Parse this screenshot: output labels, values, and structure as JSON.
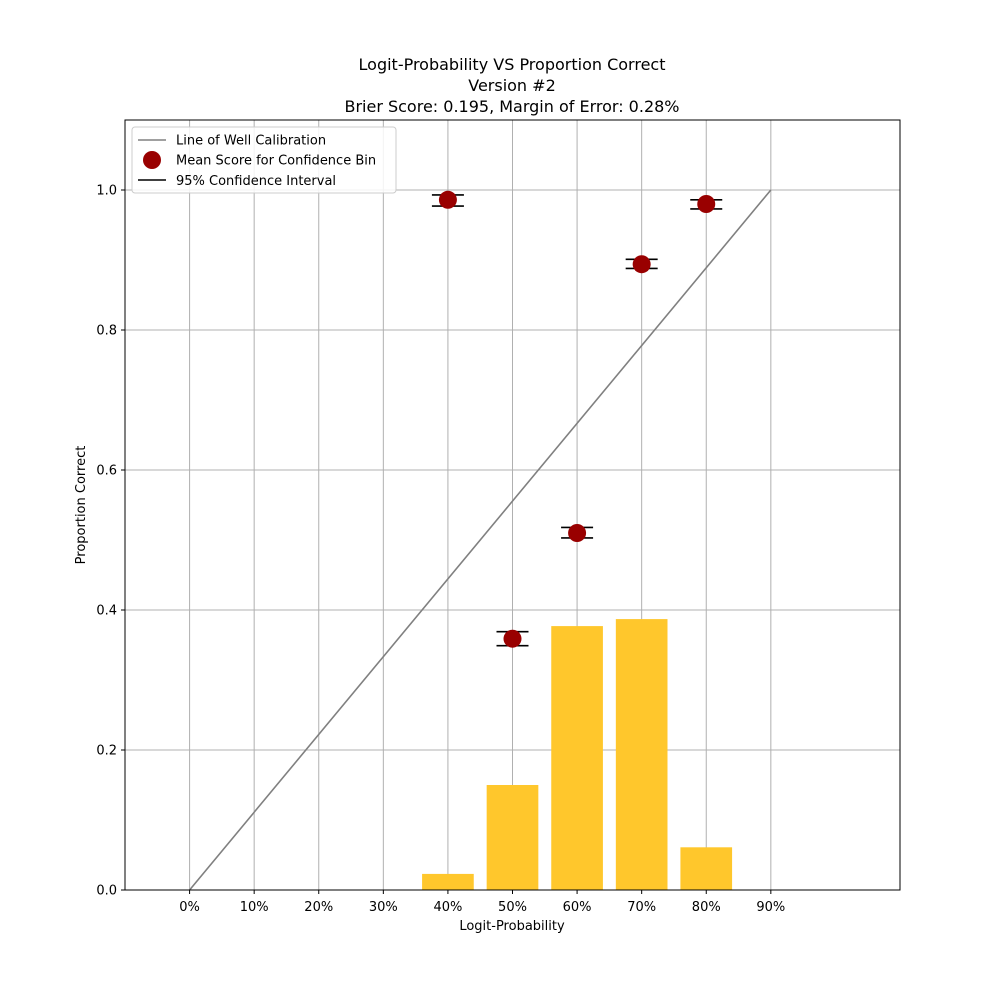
{
  "chart_data": {
    "type": "bar",
    "title_lines": [
      "Logit-Probability VS Proportion Correct",
      "Version #2",
      "Brier Score: 0.195, Margin of Error: 0.28%"
    ],
    "xlabel": "Logit-Probability",
    "ylabel": "Proportion Correct",
    "x_ticks": [
      0,
      10,
      20,
      30,
      40,
      50,
      60,
      70,
      80,
      90
    ],
    "x_tick_labels": [
      "0%",
      "10%",
      "20%",
      "30%",
      "40%",
      "50%",
      "60%",
      "70%",
      "80%",
      "90%"
    ],
    "y_ticks": [
      0.0,
      0.2,
      0.4,
      0.6,
      0.8,
      1.0
    ],
    "y_tick_labels": [
      "0.0",
      "0.2",
      "0.4",
      "0.6",
      "0.8",
      "1.0"
    ],
    "xlim": [
      -10,
      110
    ],
    "ylim": [
      0,
      1.1
    ],
    "grid": true,
    "legend_position": "top-left",
    "legend": [
      {
        "label": "Line of Well Calibration",
        "kind": "line"
      },
      {
        "label": "Mean Score for Confidence Bin",
        "kind": "marker"
      },
      {
        "label": "95% Confidence Interval",
        "kind": "errorbar"
      }
    ],
    "calibration_line": {
      "x": [
        0,
        90
      ],
      "y": [
        0,
        1.0
      ],
      "color": "#808080"
    },
    "histogram": {
      "x": [
        40,
        50,
        60,
        70,
        80
      ],
      "values": [
        0.023,
        0.15,
        0.377,
        0.387,
        0.061
      ],
      "bar_width": 8,
      "color": "#ffc72c"
    },
    "points": {
      "x": [
        40,
        50,
        60,
        70,
        80
      ],
      "y": [
        0.986,
        0.359,
        0.51,
        0.894,
        0.98
      ],
      "ci_low": [
        0.977,
        0.349,
        0.503,
        0.888,
        0.973
      ],
      "ci_high": [
        0.993,
        0.369,
        0.518,
        0.901,
        0.986
      ],
      "color": "#990000"
    },
    "colors": {
      "grid": "#b0b0b0",
      "axis": "#000000",
      "errorbar": "#000000"
    }
  }
}
